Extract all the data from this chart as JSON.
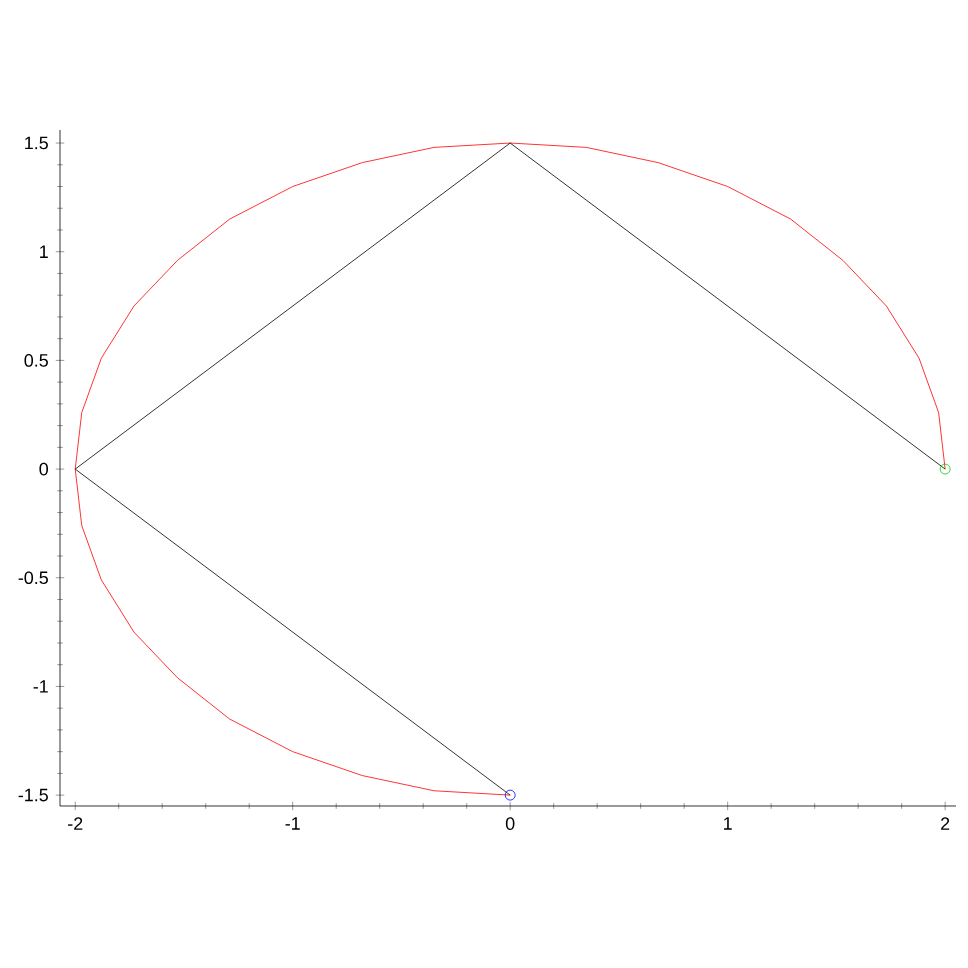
{
  "chart_data": {
    "type": "line",
    "xlim": [
      -2.07,
      2.05
    ],
    "ylim": [
      -1.55,
      1.56
    ],
    "xticks": [
      -2,
      -1,
      0,
      1,
      2
    ],
    "yticks": [
      -1.5,
      -1,
      -0.5,
      0,
      0.5,
      1,
      1.5
    ],
    "series": [
      {
        "color": "#ff0000",
        "marker": "none",
        "x": [
          2,
          1.97,
          1.88,
          1.73,
          1.53,
          1.29,
          1,
          0.68,
          0.35,
          0,
          -0.35,
          -0.68,
          -1,
          -1.29,
          -1.53,
          -1.73,
          -1.88,
          -1.97,
          -2,
          -1.97,
          -1.88,
          -1.73,
          -1.53,
          -1.29,
          -1,
          -0.68,
          -0.35,
          0
        ],
        "values": [
          0,
          0.26,
          0.51,
          0.75,
          0.96,
          1.15,
          1.3,
          1.41,
          1.48,
          1.5,
          1.48,
          1.41,
          1.3,
          1.15,
          0.96,
          0.75,
          0.51,
          0.26,
          0,
          -0.26,
          -0.51,
          -0.75,
          -0.96,
          -1.15,
          -1.3,
          -1.41,
          -1.48,
          -1.5
        ]
      },
      {
        "color": "#000000",
        "marker": "none",
        "x": [
          2,
          0,
          -2,
          0
        ],
        "values": [
          0,
          1.5,
          0,
          -1.5
        ]
      },
      {
        "type": "scatter",
        "color": "#00cc00",
        "marker": "circle",
        "x": [
          2
        ],
        "values": [
          0
        ]
      },
      {
        "type": "scatter",
        "color": "#0000ff",
        "marker": "circle",
        "x": [
          0
        ],
        "values": [
          -1.5
        ]
      }
    ]
  }
}
